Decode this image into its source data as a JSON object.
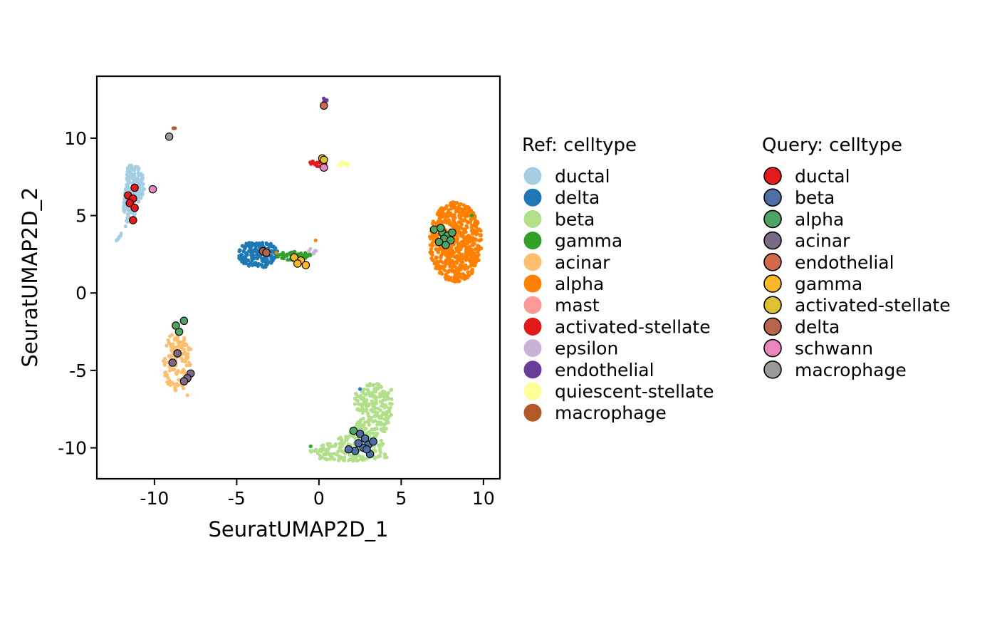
{
  "chart_data": {
    "type": "scatter",
    "xlabel": "SeuratUMAP2D_1",
    "ylabel": "SeuratUMAP2D_2",
    "xlim": [
      -13.5,
      11
    ],
    "ylim": [
      -12,
      14
    ],
    "xticks": [
      -10,
      -5,
      0,
      5,
      10
    ],
    "xtick_labels": [
      "-10",
      "-5",
      "0",
      "5",
      "10"
    ],
    "yticks": [
      -10,
      -5,
      0,
      5,
      10
    ],
    "ytick_labels": [
      "-10",
      "-5",
      "0",
      "5",
      "10"
    ],
    "grid": false,
    "legend_position": "right",
    "ref_legend": {
      "title": "Ref: celltype",
      "entries": [
        {
          "name": "ductal",
          "color": "#A6CEE3"
        },
        {
          "name": "delta",
          "color": "#1F78B4"
        },
        {
          "name": "beta",
          "color": "#B2DF8A"
        },
        {
          "name": "gamma",
          "color": "#33A02C"
        },
        {
          "name": "acinar",
          "color": "#FDBF6F"
        },
        {
          "name": "alpha",
          "color": "#FF7F00"
        },
        {
          "name": "mast",
          "color": "#FB9A99"
        },
        {
          "name": "activated-stellate",
          "color": "#E31A1C"
        },
        {
          "name": "epsilon",
          "color": "#CAB2D6"
        },
        {
          "name": "endothelial",
          "color": "#6A3D9A"
        },
        {
          "name": "quiescent-stellate",
          "color": "#FFFF99"
        },
        {
          "name": "macrophage",
          "color": "#B15928"
        }
      ]
    },
    "query_legend": {
      "title": "Query: celltype",
      "entries": [
        {
          "name": "ductal",
          "color": "#E41A1C"
        },
        {
          "name": "beta",
          "color": "#4E6FA3"
        },
        {
          "name": "alpha",
          "color": "#4DA463"
        },
        {
          "name": "acinar",
          "color": "#7A6A84"
        },
        {
          "name": "endothelial",
          "color": "#D2694A"
        },
        {
          "name": "gamma",
          "color": "#FDB827"
        },
        {
          "name": "activated-stellate",
          "color": "#DCC135"
        },
        {
          "name": "delta",
          "color": "#B9654A"
        },
        {
          "name": "schwann",
          "color": "#E986BC"
        },
        {
          "name": "macrophage",
          "color": "#999999"
        }
      ]
    },
    "ref_clusters": [
      {
        "celltype": "ductal",
        "shape": "poly",
        "poly": [
          [
            -11.6,
            8.3
          ],
          [
            -11.0,
            8.2
          ],
          [
            -10.7,
            7.6
          ],
          [
            -10.6,
            6.6
          ],
          [
            -11.0,
            5.6
          ],
          [
            -11.3,
            4.8
          ],
          [
            -11.8,
            4.2
          ],
          [
            -12.4,
            3.3
          ],
          [
            -12.0,
            3.6
          ],
          [
            -11.7,
            4.5
          ],
          [
            -11.9,
            5.5
          ],
          [
            -11.8,
            6.5
          ],
          [
            -11.7,
            7.5
          ]
        ],
        "n": 220
      },
      {
        "celltype": "delta",
        "shape": "ellipse",
        "cx": -3.7,
        "cy": 2.5,
        "rx": 1.2,
        "ry": 0.9,
        "n": 160
      },
      {
        "celltype": "gamma",
        "shape": "ellipse",
        "cx": -1.5,
        "cy": 2.4,
        "rx": 1.0,
        "ry": 0.3,
        "n": 55
      },
      {
        "celltype": "epsilon",
        "shape": "ellipse",
        "cx": -0.4,
        "cy": 2.7,
        "rx": 0.25,
        "ry": 0.2,
        "n": 6
      },
      {
        "celltype": "alpha",
        "shape": "ellipse",
        "cx": 8.3,
        "cy": 3.3,
        "rx": 1.6,
        "ry": 2.6,
        "n": 620
      },
      {
        "celltype": "acinar",
        "shape": "ellipse",
        "cx": -8.6,
        "cy": -4.5,
        "rx": 0.9,
        "ry": 2.0,
        "n": 140
      },
      {
        "celltype": "beta",
        "shape": "poly",
        "poly": [
          [
            2.2,
            -6.5
          ],
          [
            3.3,
            -5.7
          ],
          [
            4.5,
            -6.2
          ],
          [
            4.4,
            -8.0
          ],
          [
            3.8,
            -9.5
          ],
          [
            4.2,
            -10.6
          ],
          [
            2.0,
            -10.9
          ],
          [
            0.2,
            -10.8
          ],
          [
            -0.6,
            -10.2
          ],
          [
            0.4,
            -9.7
          ],
          [
            1.8,
            -9.1
          ],
          [
            2.6,
            -8.0
          ],
          [
            2.0,
            -7.0
          ]
        ],
        "n": 430
      },
      {
        "celltype": "activated-stellate",
        "shape": "ellipse",
        "cx": -0.1,
        "cy": 8.35,
        "rx": 0.5,
        "ry": 0.2,
        "n": 20
      },
      {
        "celltype": "quiescent-stellate",
        "shape": "ellipse",
        "cx": 1.5,
        "cy": 8.3,
        "rx": 0.35,
        "ry": 0.15,
        "n": 12
      },
      {
        "celltype": "endothelial",
        "shape": "ellipse",
        "cx": 0.3,
        "cy": 12.4,
        "rx": 0.2,
        "ry": 0.25,
        "n": 8
      },
      {
        "celltype": "macrophage",
        "shape": "ellipse",
        "cx": -8.8,
        "cy": 10.6,
        "rx": 0.08,
        "ry": 0.08,
        "n": 2
      }
    ],
    "ref_outliers": [
      {
        "celltype": "alpha",
        "x": -0.2,
        "y": 3.4
      },
      {
        "celltype": "alpha",
        "x": -2.6,
        "y": 2.6
      },
      {
        "celltype": "gamma",
        "x": 9.3,
        "y": 5.0
      },
      {
        "celltype": "gamma",
        "x": -0.5,
        "y": -9.9
      },
      {
        "celltype": "delta",
        "x": 2.5,
        "y": -6.2
      },
      {
        "celltype": "acinar",
        "x": -8.0,
        "y": -6.6
      },
      {
        "celltype": "epsilon",
        "x": 0.4,
        "y": 8.0
      }
    ],
    "query_points": [
      {
        "celltype": "ductal",
        "x": -11.2,
        "y": 6.8
      },
      {
        "celltype": "ductal",
        "x": -11.6,
        "y": 6.3
      },
      {
        "celltype": "ductal",
        "x": -11.3,
        "y": 6.1
      },
      {
        "celltype": "ductal",
        "x": -11.5,
        "y": 5.8
      },
      {
        "celltype": "ductal",
        "x": -11.2,
        "y": 5.5
      },
      {
        "celltype": "ductal",
        "x": -11.3,
        "y": 4.7
      },
      {
        "celltype": "schwann",
        "x": -10.1,
        "y": 6.7
      },
      {
        "celltype": "macrophage",
        "x": -9.1,
        "y": 10.1
      },
      {
        "celltype": "delta",
        "x": -3.4,
        "y": 2.7
      },
      {
        "celltype": "delta",
        "x": -3.2,
        "y": 2.6
      },
      {
        "celltype": "gamma",
        "x": -1.5,
        "y": 2.3
      },
      {
        "celltype": "gamma",
        "x": -1.1,
        "y": 2.1
      },
      {
        "celltype": "gamma",
        "x": -0.8,
        "y": 1.8
      },
      {
        "celltype": "gamma",
        "x": -1.3,
        "y": 1.9
      },
      {
        "celltype": "activated-stellate",
        "x": 0.2,
        "y": 8.7
      },
      {
        "celltype": "activated-stellate",
        "x": 0.3,
        "y": 8.6
      },
      {
        "celltype": "schwann",
        "x": 0.3,
        "y": 8.1
      },
      {
        "celltype": "endothelial",
        "x": 0.3,
        "y": 12.1
      },
      {
        "celltype": "alpha",
        "x": 7.0,
        "y": 4.1
      },
      {
        "celltype": "alpha",
        "x": 7.5,
        "y": 3.9
      },
      {
        "celltype": "alpha",
        "x": 7.8,
        "y": 3.7
      },
      {
        "celltype": "alpha",
        "x": 7.6,
        "y": 3.5
      },
      {
        "celltype": "alpha",
        "x": 8.0,
        "y": 3.4
      },
      {
        "celltype": "alpha",
        "x": 7.3,
        "y": 3.3
      },
      {
        "celltype": "alpha",
        "x": 7.7,
        "y": 3.1
      },
      {
        "celltype": "alpha",
        "x": 8.1,
        "y": 3.9
      },
      {
        "celltype": "alpha",
        "x": 7.4,
        "y": 4.2
      },
      {
        "celltype": "alpha",
        "x": -8.2,
        "y": -1.8
      },
      {
        "celltype": "alpha",
        "x": -8.7,
        "y": -2.1
      },
      {
        "celltype": "alpha",
        "x": -8.5,
        "y": -2.5
      },
      {
        "celltype": "alpha",
        "x": 2.1,
        "y": -8.9
      },
      {
        "celltype": "acinar",
        "x": -8.6,
        "y": -3.9
      },
      {
        "celltype": "acinar",
        "x": -8.9,
        "y": -4.5
      },
      {
        "celltype": "acinar",
        "x": -7.8,
        "y": -5.2
      },
      {
        "celltype": "acinar",
        "x": -8.0,
        "y": -5.5
      },
      {
        "celltype": "acinar",
        "x": -8.2,
        "y": -5.7
      },
      {
        "celltype": "beta",
        "x": 2.5,
        "y": -9.1
      },
      {
        "celltype": "beta",
        "x": 2.8,
        "y": -9.4
      },
      {
        "celltype": "beta",
        "x": 3.0,
        "y": -9.8
      },
      {
        "celltype": "beta",
        "x": 2.7,
        "y": -10.0
      },
      {
        "celltype": "beta",
        "x": 2.4,
        "y": -9.7
      },
      {
        "celltype": "beta",
        "x": 2.2,
        "y": -10.2
      },
      {
        "celltype": "beta",
        "x": 3.1,
        "y": -10.4
      },
      {
        "celltype": "beta",
        "x": 2.9,
        "y": -10.1
      },
      {
        "celltype": "beta",
        "x": 1.8,
        "y": -10.1
      },
      {
        "celltype": "beta",
        "x": 3.3,
        "y": -9.6
      }
    ]
  }
}
